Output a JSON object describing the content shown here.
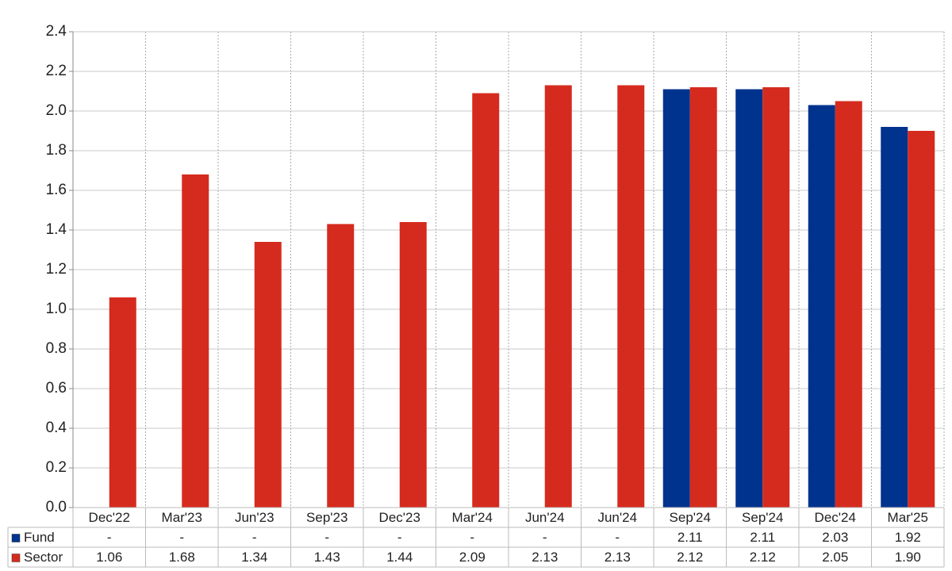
{
  "chart_data": {
    "type": "bar",
    "categories": [
      "Dec'22",
      "Mar'23",
      "Jun'23",
      "Sep'23",
      "Dec'23",
      "Mar'24",
      "Jun'24",
      "Jun'24",
      "Sep'24",
      "Sep'24",
      "Dec'24",
      "Mar'25"
    ],
    "series": [
      {
        "name": "Fund",
        "color": "#00338d",
        "values": [
          null,
          null,
          null,
          null,
          null,
          null,
          null,
          null,
          2.11,
          2.11,
          2.03,
          1.92
        ],
        "value_labels": [
          "-",
          "-",
          "-",
          "-",
          "-",
          "-",
          "-",
          "-",
          "2.11",
          "2.11",
          "2.03",
          "1.92"
        ]
      },
      {
        "name": "Sector",
        "color": "#d52b1e",
        "values": [
          1.06,
          1.68,
          1.34,
          1.43,
          1.44,
          2.09,
          2.13,
          2.13,
          2.12,
          2.12,
          2.05,
          1.9
        ],
        "value_labels": [
          "1.06",
          "1.68",
          "1.34",
          "1.43",
          "1.44",
          "2.09",
          "2.13",
          "2.13",
          "2.12",
          "2.12",
          "2.05",
          "1.90"
        ]
      }
    ],
    "ylim": [
      0,
      2.4
    ],
    "yticks": [
      {
        "value": 0,
        "label": "0.0"
      },
      0.2,
      0.4,
      0.6,
      0.8,
      {
        "value": 1,
        "label": "1.0"
      },
      1.2,
      1.4,
      1.6,
      1.8,
      {
        "value": 2,
        "label": "2.0"
      },
      2.2,
      2.4
    ],
    "grid": true
  }
}
